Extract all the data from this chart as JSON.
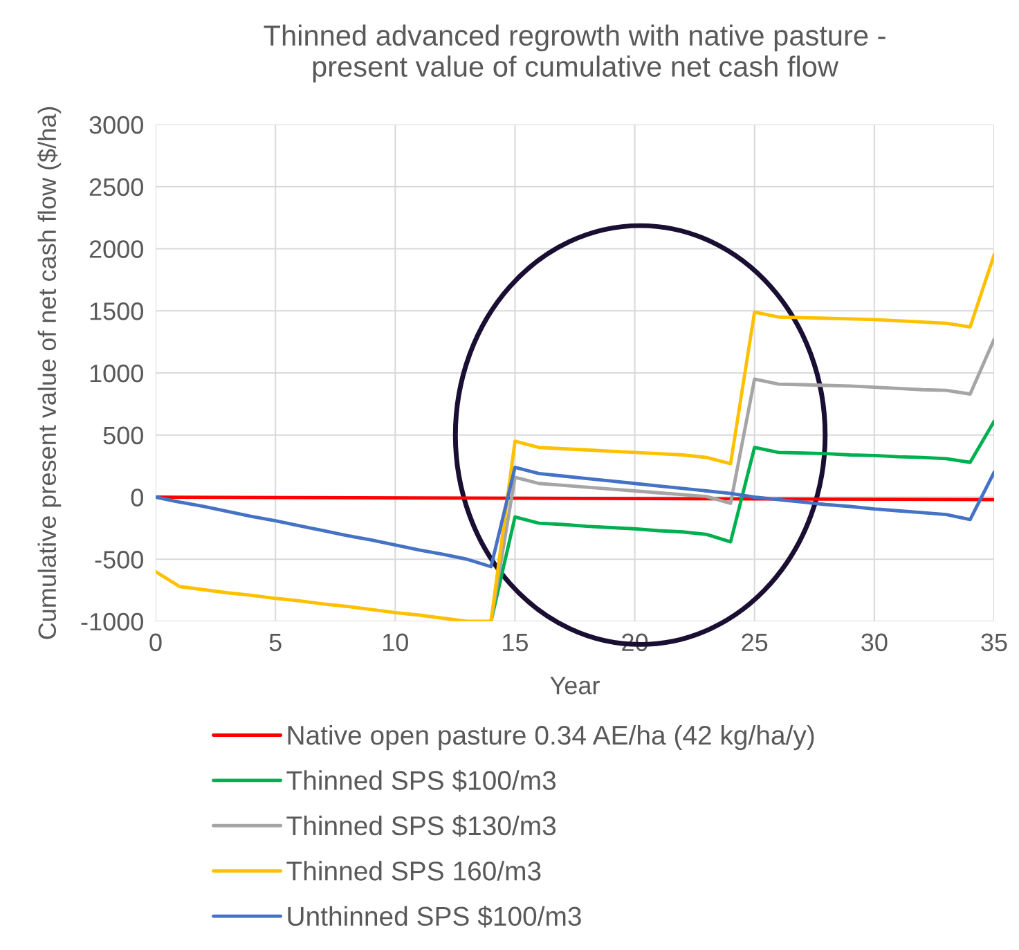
{
  "chart_data": {
    "type": "line",
    "title": "Thinned advanced regrowth with native pasture -\npresent value of cumulative net cash flow",
    "xlabel": "Year",
    "ylabel": "Cumulative present value of net cash flow ($/ha)",
    "x": [
      0,
      1,
      2,
      3,
      4,
      5,
      6,
      7,
      8,
      9,
      10,
      11,
      12,
      13,
      14,
      15,
      16,
      17,
      18,
      19,
      20,
      21,
      22,
      23,
      24,
      25,
      26,
      27,
      28,
      29,
      30,
      31,
      32,
      33,
      34,
      35
    ],
    "series": [
      {
        "name": "Native open pasture 0.34 AE/ha (42 kg/ha/y)",
        "color": "#ff0000",
        "x": [
          0,
          35
        ],
        "values": [
          0,
          -20
        ]
      },
      {
        "name": "Thinned SPS $100/m3",
        "color": "#00b050",
        "values": [
          null,
          null,
          null,
          null,
          null,
          null,
          null,
          null,
          null,
          null,
          null,
          null,
          null,
          null,
          -1000,
          -160,
          -210,
          -220,
          -235,
          -245,
          -255,
          -270,
          -280,
          -300,
          -360,
          400,
          360,
          355,
          350,
          340,
          335,
          325,
          320,
          310,
          280,
          610
        ]
      },
      {
        "name": "Thinned SPS $130/m3",
        "color": "#a5a5a5",
        "values": [
          null,
          null,
          null,
          null,
          null,
          null,
          null,
          null,
          null,
          null,
          null,
          null,
          null,
          null,
          -1000,
          160,
          110,
          95,
          80,
          65,
          50,
          35,
          20,
          5,
          -50,
          950,
          910,
          905,
          900,
          895,
          885,
          875,
          865,
          860,
          830,
          1270
        ]
      },
      {
        "name": "Thinned SPS 160/m3",
        "color": "#ffc000",
        "values": [
          -600,
          -720,
          -745,
          -770,
          -790,
          -815,
          -835,
          -860,
          -880,
          -905,
          -930,
          -950,
          -975,
          -1000,
          -1000,
          450,
          400,
          390,
          380,
          370,
          360,
          350,
          340,
          320,
          270,
          1490,
          1450,
          1445,
          1440,
          1435,
          1430,
          1420,
          1410,
          1400,
          1370,
          1950
        ]
      },
      {
        "name": "Unthinned SPS $100/m3",
        "color": "#4472c4",
        "values": [
          0,
          -40,
          -75,
          -115,
          -155,
          -190,
          -230,
          -270,
          -310,
          -345,
          -385,
          -425,
          -460,
          -500,
          -560,
          240,
          190,
          170,
          150,
          130,
          110,
          90,
          70,
          50,
          30,
          0,
          -20,
          -40,
          -60,
          -75,
          -95,
          -110,
          -125,
          -140,
          -180,
          200
        ]
      }
    ],
    "xlim": [
      0,
      35
    ],
    "xticks": [
      0,
      5,
      10,
      15,
      20,
      25,
      30,
      35
    ],
    "ylim": [
      -1000,
      3000
    ],
    "yticks": [
      -1000,
      -500,
      0,
      500,
      1000,
      1500,
      2000,
      2500,
      3000
    ],
    "grid": true,
    "legend": "bottom",
    "marker": "none",
    "line_style": "solid"
  }
}
